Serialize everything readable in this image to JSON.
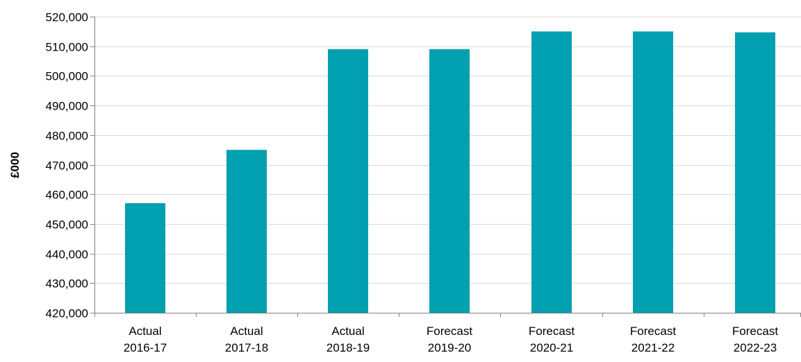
{
  "chart_data": {
    "type": "bar",
    "title": "",
    "xlabel": "",
    "ylabel": "£000",
    "ylim": [
      420000,
      520000
    ],
    "y_ticks": [
      420000,
      430000,
      440000,
      450000,
      460000,
      470000,
      480000,
      490000,
      500000,
      510000,
      520000
    ],
    "y_tick_labels": [
      "420,000",
      "430,000",
      "440,000",
      "450,000",
      "460,000",
      "470,000",
      "480,000",
      "490,000",
      "500,000",
      "510,000",
      "520,000"
    ],
    "grid": true,
    "legend": "none",
    "bar_color": "#00A0B0",
    "categories": [
      [
        "Actual",
        "2016-17"
      ],
      [
        "Actual",
        "2017-18"
      ],
      [
        "Actual",
        "2018-19"
      ],
      [
        "Forecast",
        "2019-20"
      ],
      [
        "Forecast",
        "2020-21"
      ],
      [
        "Forecast",
        "2021-22"
      ],
      [
        "Forecast",
        "2022-23"
      ]
    ],
    "values": [
      457000,
      475000,
      509000,
      509000,
      515000,
      515000,
      514700
    ]
  }
}
